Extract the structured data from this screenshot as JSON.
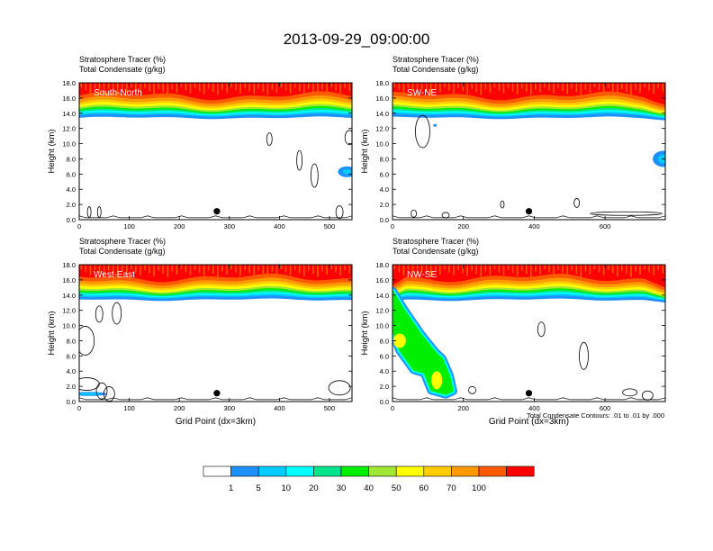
{
  "title": "2013-09-29_09:00:00",
  "footnote": "Total Condensate Contours: .01 to .01 by .000",
  "x_axis_label": "Grid Point (dx=3km)",
  "colors": {
    "levels": [
      "#ffffff",
      "#1e90ff",
      "#00ccff",
      "#00ffff",
      "#00e58c",
      "#00ee00",
      "#a0e632",
      "#ffff00",
      "#ffcc00",
      "#ff9900",
      "#ff5a00",
      "#ff0000"
    ]
  },
  "colorbar": {
    "labels": [
      "1",
      "5",
      "10",
      "20",
      "30",
      "40",
      "50",
      "60",
      "70",
      "100"
    ]
  },
  "chart_data": [
    {
      "type": "heatmap",
      "subtitle_1": "Stratosphere Tracer   (%)",
      "subtitle_2": "Total Condensate   (g/kg)",
      "panel_label": "South-North",
      "ylabel": "Height (km)",
      "xlabel": "",
      "xlim": [
        0,
        545
      ],
      "ylim": [
        0,
        18
      ],
      "x_ticks": [
        "0",
        "100",
        "200",
        "300",
        "400",
        "500"
      ],
      "y_ticks": [
        "0.0",
        "2.0",
        "4.0",
        "6.0",
        "8.0",
        "10.0",
        "12.0",
        "14.0",
        "16.0",
        "18.0"
      ],
      "marker": [
        275,
        1.1
      ]
    },
    {
      "type": "heatmap",
      "subtitle_1": "Stratosphere Tracer   (%)",
      "subtitle_2": "Total Condensate   (g/kg)",
      "panel_label": "SW-NE",
      "ylabel": "Height (km)",
      "xlabel": "",
      "xlim": [
        0,
        770
      ],
      "ylim": [
        0,
        18
      ],
      "x_ticks": [
        "0",
        "200",
        "400",
        "600"
      ],
      "y_ticks": [
        "0.0",
        "2.0",
        "4.0",
        "6.0",
        "8.0",
        "10.0",
        "12.0",
        "14.0",
        "16.0",
        "18.0"
      ],
      "marker": [
        385,
        1.1
      ]
    },
    {
      "type": "heatmap",
      "subtitle_1": "Stratosphere Tracer   (%)",
      "subtitle_2": "Total Condensate   (g/kg)",
      "panel_label": "West-East",
      "ylabel": "Height (km)",
      "xlabel": "Grid Point (dx=3km)",
      "xlim": [
        0,
        545
      ],
      "ylim": [
        0,
        18
      ],
      "x_ticks": [
        "0",
        "100",
        "200",
        "300",
        "400",
        "500"
      ],
      "y_ticks": [
        "0.0",
        "2.0",
        "4.0",
        "6.0",
        "8.0",
        "10.0",
        "12.0",
        "14.0",
        "16.0",
        "18.0"
      ],
      "marker": [
        275,
        1.1
      ]
    },
    {
      "type": "heatmap",
      "subtitle_1": "Stratosphere Tracer   (%)",
      "subtitle_2": "Total Condensate   (g/kg)",
      "panel_label": "NW-SE",
      "ylabel": "Height (km)",
      "xlabel": "Grid Point (dx=3km)",
      "xlim": [
        0,
        770
      ],
      "ylim": [
        0,
        18
      ],
      "x_ticks": [
        "0",
        "200",
        "400",
        "600"
      ],
      "y_ticks": [
        "0.0",
        "2.0",
        "4.0",
        "6.0",
        "8.0",
        "10.0",
        "12.0",
        "14.0",
        "16.0",
        "18.0"
      ],
      "marker": [
        385,
        1.1
      ]
    }
  ]
}
